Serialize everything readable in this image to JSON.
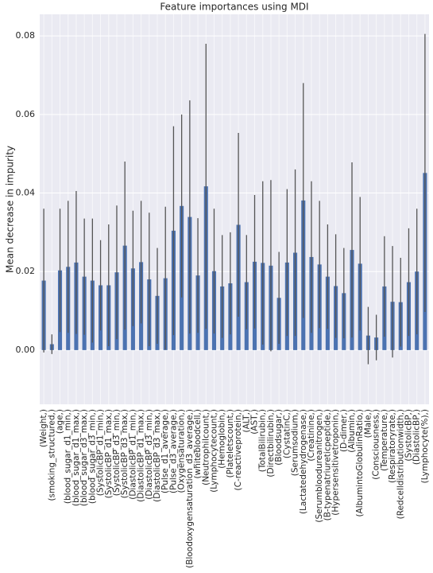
{
  "chart_data": {
    "type": "bar",
    "title": "Feature importances using MDI",
    "y_label": "Mean decrease in impurity",
    "categories": [
      "(Weight,)",
      "(smoking_structured,)",
      "(age,)",
      "(blood_sugar_d1_min,)",
      "(blood_sugar_d1_max,)",
      "(blood_sugar_d3_max,)",
      "(blood_sugar_d3_min,)",
      "(SystolicBP_d1_min,)",
      "(SystolicBP_d1_max,)",
      "(SystolicBP_d3_min,)",
      "(SystolicBP_d3_max,)",
      "(DiastolicBP_d1_min,)",
      "(DiastolicBP_d1_max,)",
      "(DiastolicBP_d3_min,)",
      "(DiastolicBP_d3_max,)",
      "(Pulse_d1_average,)",
      "(Pulse_d3_average,)",
      "(Oxygensaturation,)",
      "(Bloodoxygensaturation_d3_average,)",
      "(whitebloodcell,)",
      "(Neutrophilcount,)",
      "(Lymphocytecount,)",
      "(Hemoglobin,)",
      "(Plateletscount,)",
      "(C-reactiveprotein,)",
      "(ALT,)",
      "(AST,)",
      "(TotalBilirubin,)",
      "(Directbilirubin,)",
      "(Bloodsugar,)",
      "(CystatinC,)",
      "(Serumsodium,)",
      "(Lactatedehydrogenase,)",
      "(Creatinine,)",
      "(Serumbloodureanitrogen,)",
      "(B-typenatriureticpeptide,)",
      "(Hypersensitivetroponin,)",
      "(D-dimer,)",
      "(Albumin,)",
      "(AlbumintoGlobulinRatio,)",
      "(Male,)",
      "(Consciousness,)",
      "(Temperature,)",
      "(Respiratoryrate,)",
      "(Redcelldistributionwidth,)",
      "(SystolicBP,)",
      "(DiastolicBP,)",
      "(Lymphocyte(%),)"
    ],
    "values": [
      0.0177,
      0.0015,
      0.0203,
      0.0212,
      0.0223,
      0.0187,
      0.0177,
      0.0165,
      0.0165,
      0.0198,
      0.0266,
      0.0208,
      0.0224,
      0.018,
      0.0138,
      0.0183,
      0.0304,
      0.0367,
      0.0339,
      0.019,
      0.0417,
      0.0201,
      0.0162,
      0.017,
      0.0319,
      0.0173,
      0.0225,
      0.0222,
      0.0215,
      0.0133,
      0.0223,
      0.0248,
      0.0381,
      0.0237,
      0.0218,
      0.0187,
      0.0163,
      0.0145,
      0.0255,
      0.022,
      0.0037,
      0.0032,
      0.0162,
      0.0123,
      0.0122,
      0.0173,
      0.02,
      0.0451
    ],
    "errors": [
      0.0183,
      0.0025,
      0.0157,
      0.0168,
      0.0182,
      0.0148,
      0.0158,
      0.0115,
      0.0155,
      0.017,
      0.0214,
      0.0147,
      0.0156,
      0.017,
      0.0122,
      0.0182,
      0.0266,
      0.0233,
      0.0297,
      0.0146,
      0.0363,
      0.0159,
      0.0131,
      0.013,
      0.0234,
      0.012,
      0.017,
      0.0208,
      0.0218,
      0.0117,
      0.0187,
      0.0212,
      0.0299,
      0.0193,
      0.0162,
      0.0133,
      0.0132,
      0.0115,
      0.0223,
      0.017,
      0.0073,
      0.0058,
      0.0128,
      0.0142,
      0.0113,
      0.0137,
      0.016,
      0.0354
    ],
    "color": "#4c72b0",
    "error_color": "#555555",
    "ylim": [
      -0.0138,
      0.0855
    ],
    "yticks": [
      {
        "value": 0,
        "label": "0.00"
      },
      {
        "value": 0.02,
        "label": "0.02"
      },
      {
        "value": 0.04,
        "label": "0.04"
      },
      {
        "value": 0.06,
        "label": "0.06"
      },
      {
        "value": 0.08,
        "label": "0.08"
      }
    ],
    "grid": true
  }
}
